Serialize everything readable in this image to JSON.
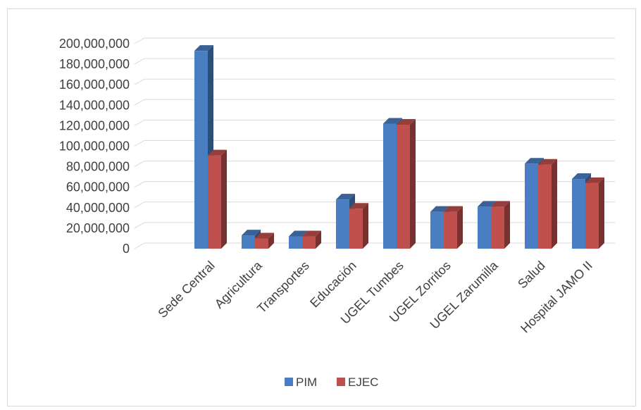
{
  "chart_data": {
    "type": "bar",
    "variant": "3d-clustered-column",
    "categories": [
      "Sede Central",
      "Agricultura",
      "Transportes",
      "Educación",
      "UGEL Tumbes",
      "UGEL Zorritos",
      "UGEL Zarumilla",
      "Salud",
      "Hospital JAMO II"
    ],
    "series": [
      {
        "name": "PIM",
        "color": "#4a7ec2",
        "values": [
          193000000,
          13000000,
          12000000,
          48000000,
          122000000,
          36000000,
          41000000,
          83000000,
          68000000
        ]
      },
      {
        "name": "EJEC",
        "color": "#c0504d",
        "values": [
          91000000,
          10000000,
          12000000,
          39000000,
          121000000,
          36000000,
          41000000,
          82000000,
          64000000
        ]
      }
    ],
    "ylim": [
      0,
      200000000
    ],
    "yticks": [
      0,
      20000000,
      40000000,
      60000000,
      80000000,
      100000000,
      120000000,
      140000000,
      160000000,
      180000000,
      200000000
    ],
    "ytick_labels": [
      "0",
      "20,000,000",
      "40,000,000",
      "60,000,000",
      "80,000,000",
      "100,000,000",
      "120,000,000",
      "140,000,000",
      "160,000,000",
      "180,000,000",
      "200,000,000"
    ],
    "grid": true,
    "legend": "bottom",
    "title": "",
    "xlabel": "",
    "ylabel": ""
  }
}
